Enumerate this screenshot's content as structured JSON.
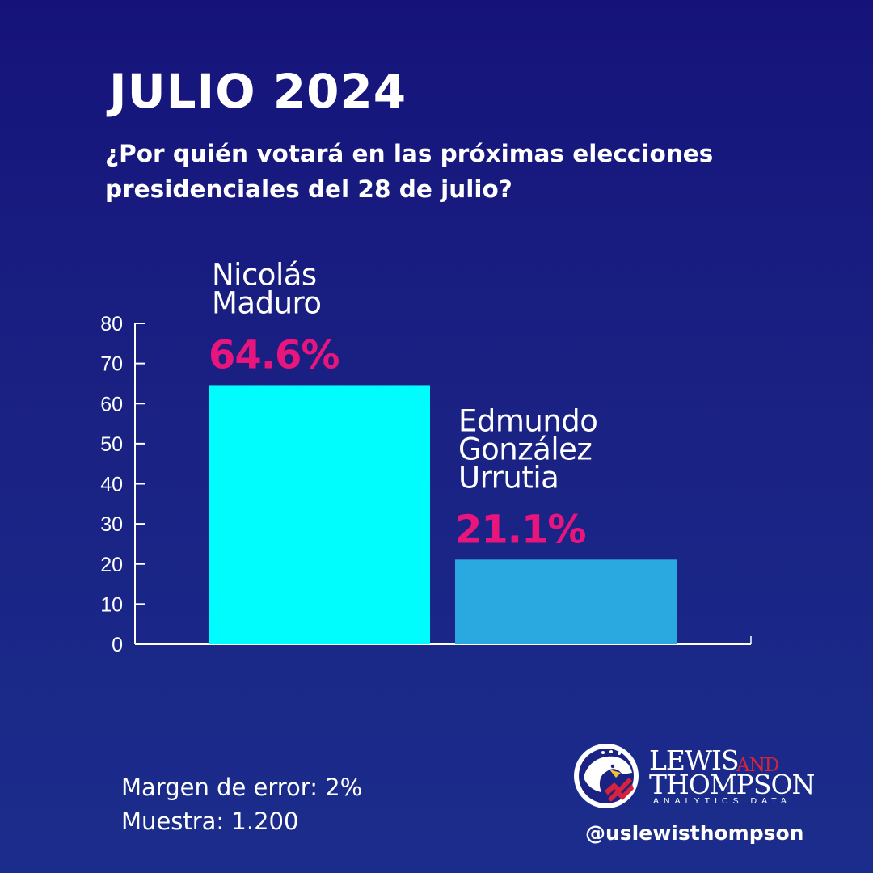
{
  "header": {
    "title": "JULIO 2024",
    "subtitle": "¿Por quién votará en las próximas elecciones presidenciales del 28 de julio?"
  },
  "chart_data": {
    "type": "bar",
    "title": "JULIO 2024",
    "subtitle": "¿Por quién votará en las próximas elecciones presidenciales del 28 de julio?",
    "xlabel": "",
    "ylabel": "",
    "ylim": [
      0,
      80
    ],
    "yticks": [
      0,
      10,
      20,
      30,
      40,
      50,
      60,
      70,
      80
    ],
    "grid": false,
    "categories": [
      {
        "name_lines": [
          "Nicolás",
          "Maduro"
        ],
        "value": 64.6,
        "label": "64.6%",
        "bar_color": "#00fdfd",
        "label_color": "#e8157d"
      },
      {
        "name_lines": [
          "Edmundo",
          "González",
          "Urrutia"
        ],
        "value": 21.1,
        "label": "21.1%",
        "bar_color": "#29a9e0",
        "label_color": "#e8157d"
      }
    ]
  },
  "footer": {
    "margin_of_error": "Margen de error: 2%",
    "sample": "Muestra: 1.200",
    "handle": "@uslewisthompson"
  },
  "logo": {
    "word1": "LEWIS",
    "and": "AND",
    "word2": "THOMPSON",
    "tagline": "ANALYTICS DATA",
    "icon": "eagle-flag-icon"
  },
  "colors": {
    "background_top": "#15137a",
    "background_bottom": "#1b2d8c",
    "accent_pink": "#e8157d",
    "logo_red": "#d6233b"
  }
}
